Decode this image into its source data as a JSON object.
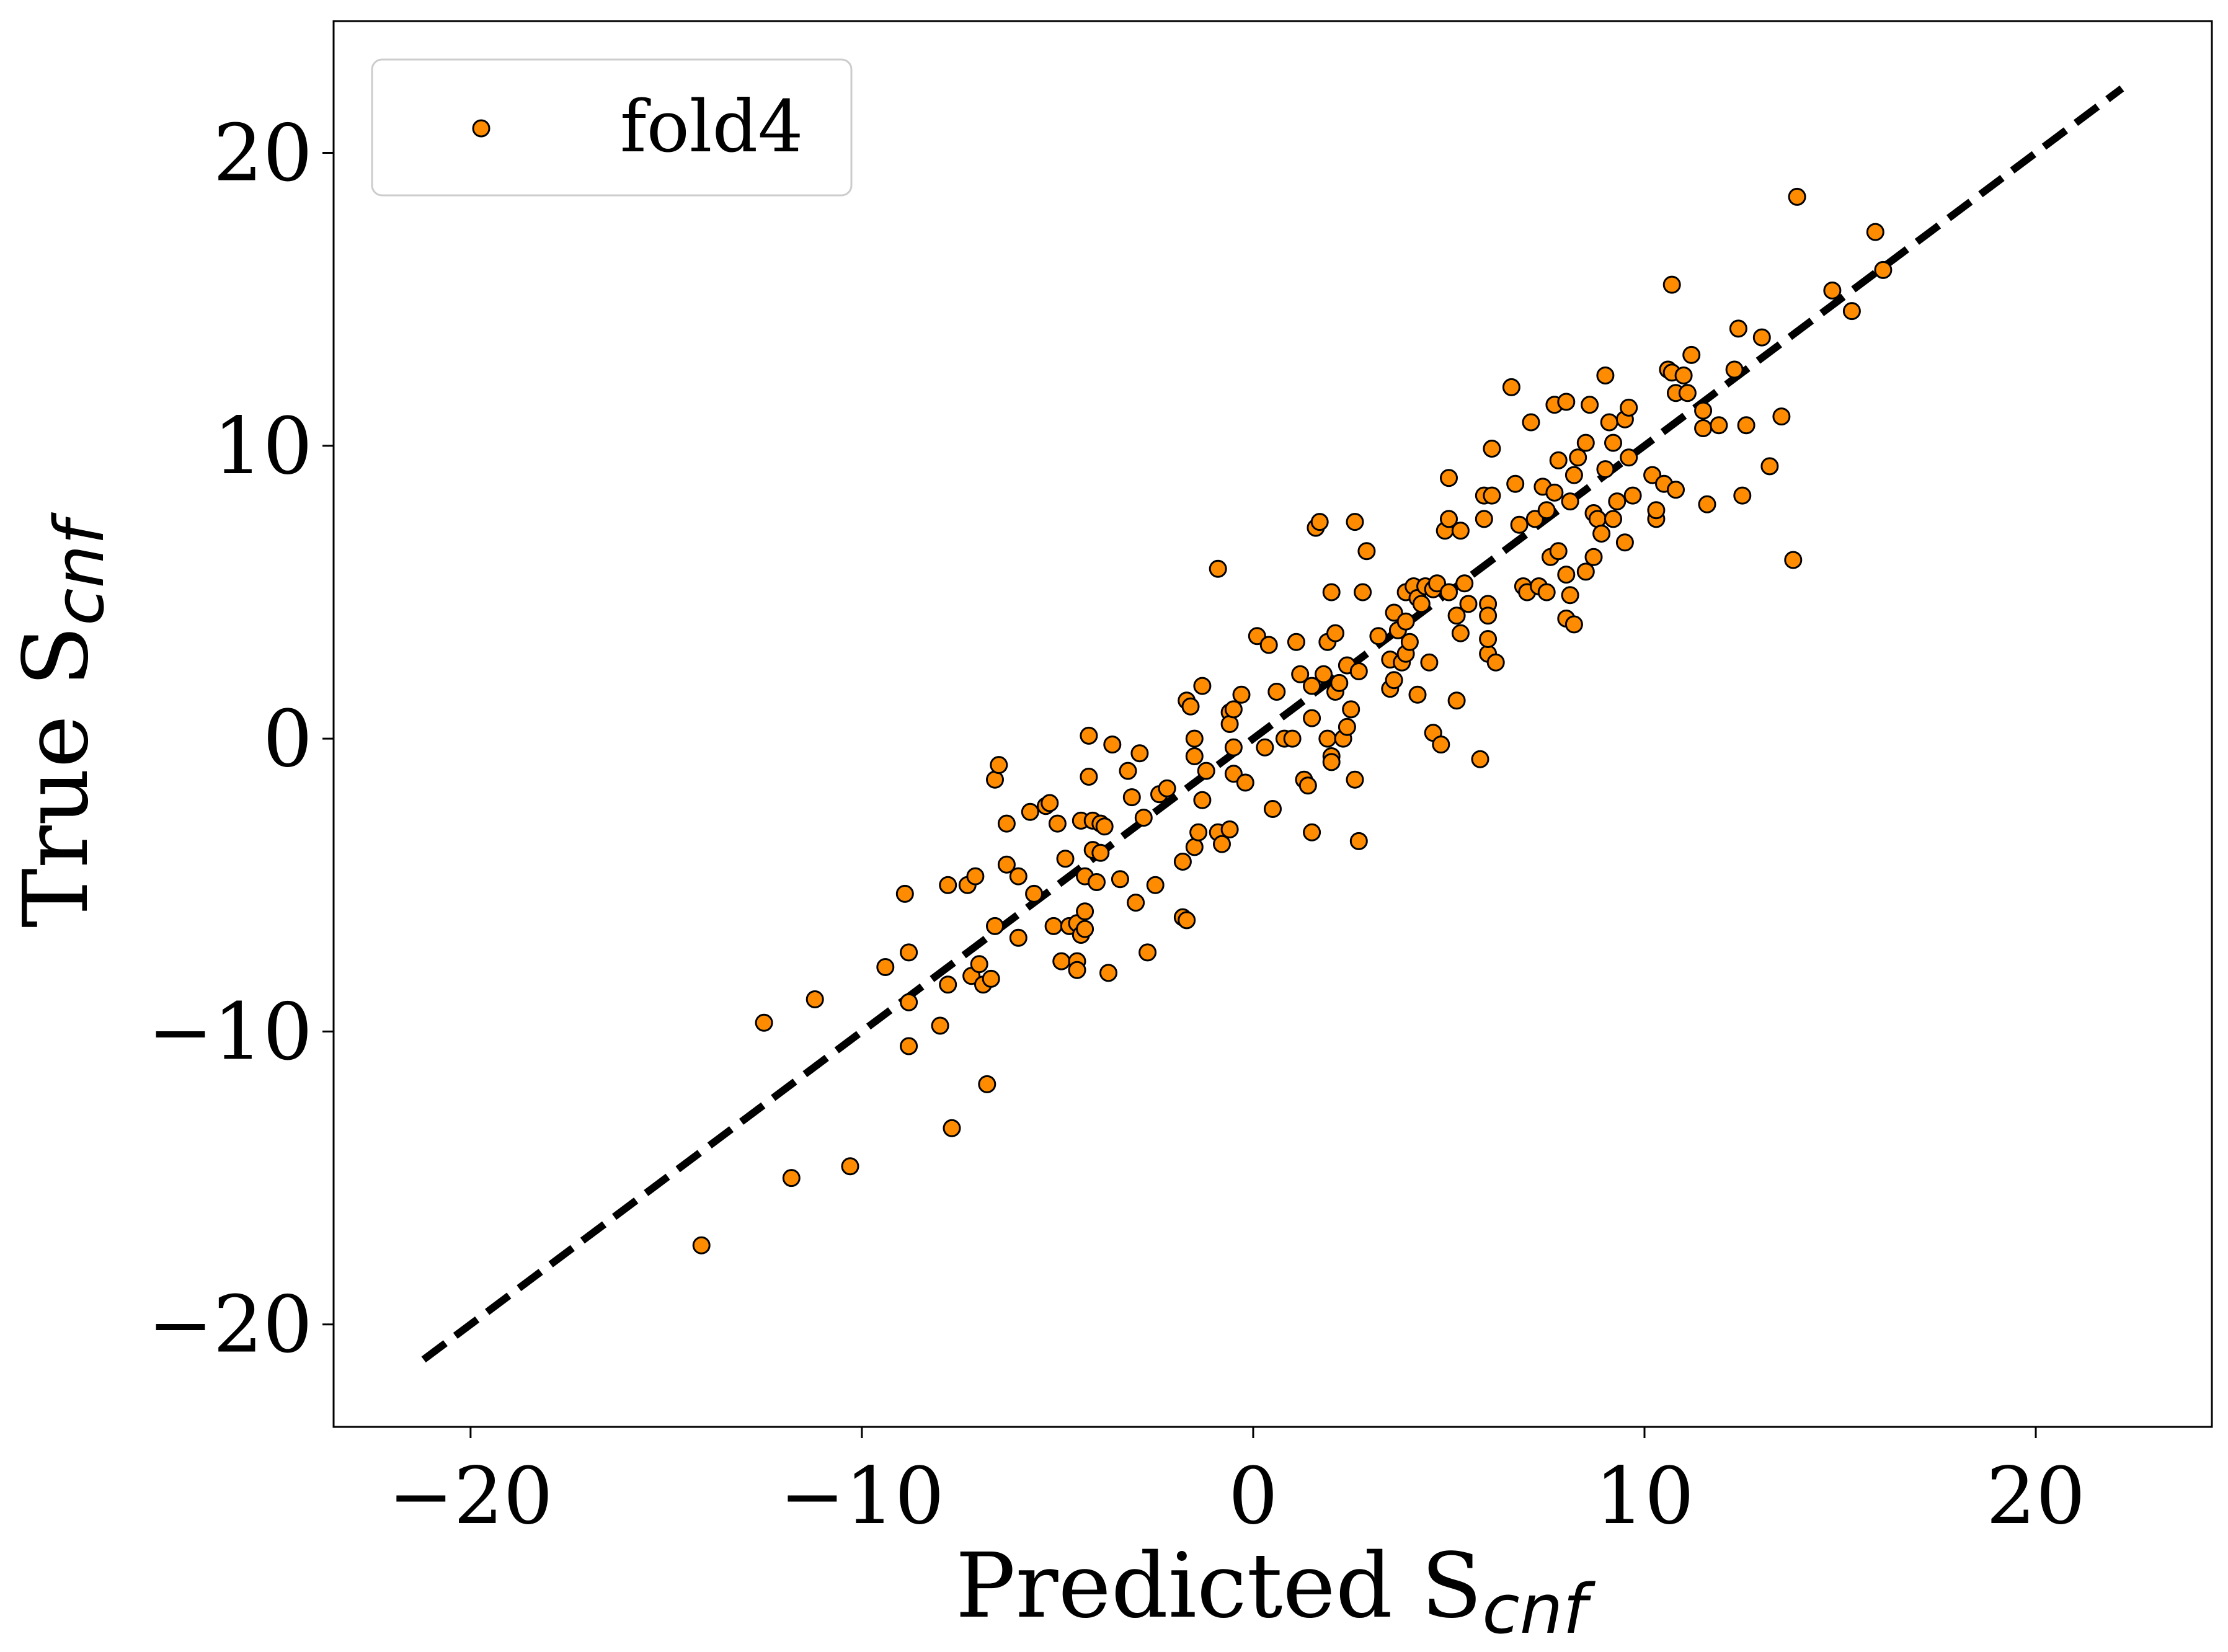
{
  "colors": {
    "marker_fill": "#ff8c00",
    "marker_edge": "#000000",
    "identity_line": "#000000",
    "background": "#ffffff"
  },
  "chart_data": {
    "type": "scatter",
    "xlabel": {
      "main": "Predicted S",
      "sub": "cnf"
    },
    "ylabel": {
      "main": "True S",
      "sub": "cnf"
    },
    "xlim": [
      -23.5,
      24.5
    ],
    "ylim": [
      -23.5,
      24.5
    ],
    "xticks": [
      -20,
      -10,
      0,
      10,
      20
    ],
    "yticks": [
      -20,
      -10,
      0,
      10,
      20
    ],
    "xtick_labels": [
      "−20",
      "−10",
      "0",
      "10",
      "20"
    ],
    "ytick_labels": [
      "−20",
      "−10",
      "0",
      "10",
      "20"
    ],
    "grid": false,
    "legend": {
      "position": "top-left",
      "entries": [
        "fold4"
      ]
    },
    "reference_line": {
      "style": "dashed",
      "from": [
        -21.2,
        -21.2
      ],
      "to": [
        22.2,
        22.2
      ]
    },
    "series": [
      {
        "name": "fold4",
        "points": [
          [
            -14.1,
            -17.3
          ],
          [
            -12.5,
            -9.7
          ],
          [
            -11.8,
            -15.0
          ],
          [
            -11.2,
            -8.9
          ],
          [
            -10.3,
            -14.6
          ],
          [
            -9.4,
            -7.8
          ],
          [
            -8.9,
            -5.3
          ],
          [
            -8.8,
            -7.3
          ],
          [
            -8.8,
            -9.0
          ],
          [
            -8.8,
            -10.5
          ],
          [
            -8.0,
            -9.8
          ],
          [
            -7.8,
            -5.0
          ],
          [
            -7.8,
            -8.4
          ],
          [
            -7.7,
            -13.3
          ],
          [
            -7.3,
            -5.0
          ],
          [
            -7.2,
            -8.1
          ],
          [
            -7.1,
            -4.7
          ],
          [
            -7.0,
            -7.7
          ],
          [
            -6.9,
            -8.4
          ],
          [
            -6.8,
            -11.8
          ],
          [
            -6.7,
            -8.2
          ],
          [
            -6.6,
            -1.4
          ],
          [
            -6.6,
            -6.4
          ],
          [
            -6.5,
            -0.9
          ],
          [
            -6.3,
            -2.9
          ],
          [
            -6.3,
            -4.3
          ],
          [
            -6.0,
            -4.7
          ],
          [
            -6.0,
            -6.8
          ],
          [
            -5.7,
            -2.5
          ],
          [
            -5.6,
            -5.3
          ],
          [
            -5.3,
            -2.3
          ],
          [
            -5.2,
            -2.2
          ],
          [
            -5.1,
            -6.4
          ],
          [
            -5.0,
            -2.9
          ],
          [
            -4.9,
            -7.6
          ],
          [
            -4.8,
            -4.1
          ],
          [
            -4.7,
            -6.4
          ],
          [
            -4.5,
            -6.3
          ],
          [
            -4.5,
            -7.6
          ],
          [
            -4.5,
            -7.9
          ],
          [
            -4.4,
            -6.7
          ],
          [
            -4.4,
            -2.8
          ],
          [
            -4.3,
            -4.7
          ],
          [
            -4.3,
            -5.9
          ],
          [
            -4.3,
            -6.5
          ],
          [
            -4.2,
            0.1
          ],
          [
            -4.2,
            -1.3
          ],
          [
            -4.1,
            -2.8
          ],
          [
            -4.1,
            -3.8
          ],
          [
            -4.0,
            -4.9
          ],
          [
            -3.9,
            -2.9
          ],
          [
            -3.9,
            -3.9
          ],
          [
            -3.8,
            -3.0
          ],
          [
            -3.7,
            -8.0
          ],
          [
            -3.6,
            -0.2
          ],
          [
            -3.4,
            -4.8
          ],
          [
            -3.2,
            -1.1
          ],
          [
            -3.1,
            -2.0
          ],
          [
            -3.0,
            -5.6
          ],
          [
            -2.9,
            -0.5
          ],
          [
            -2.8,
            -2.7
          ],
          [
            -2.7,
            -7.3
          ],
          [
            -2.5,
            -5.0
          ],
          [
            -2.4,
            -1.9
          ],
          [
            -2.2,
            -1.7
          ],
          [
            -1.8,
            -4.2
          ],
          [
            -1.8,
            -6.1
          ],
          [
            -1.7,
            -6.2
          ],
          [
            -1.7,
            1.3
          ],
          [
            -1.6,
            1.1
          ],
          [
            -1.5,
            0.0
          ],
          [
            -1.5,
            -0.6
          ],
          [
            -1.5,
            -3.7
          ],
          [
            -1.4,
            -3.2
          ],
          [
            -1.3,
            1.8
          ],
          [
            -1.3,
            -2.1
          ],
          [
            -1.2,
            -1.1
          ],
          [
            -0.9,
            -3.2
          ],
          [
            -0.9,
            5.8
          ],
          [
            -0.8,
            -3.6
          ],
          [
            -0.6,
            -3.1
          ],
          [
            -0.6,
            0.9
          ],
          [
            -0.6,
            0.5
          ],
          [
            -0.5,
            -0.3
          ],
          [
            -0.5,
            -1.2
          ],
          [
            -0.5,
            1.0
          ],
          [
            -0.3,
            1.5
          ],
          [
            -0.2,
            -1.5
          ],
          [
            0.1,
            3.5
          ],
          [
            0.3,
            -0.3
          ],
          [
            0.4,
            3.2
          ],
          [
            0.5,
            -2.4
          ],
          [
            0.6,
            1.6
          ],
          [
            0.8,
            0.0
          ],
          [
            1.0,
            0.0
          ],
          [
            1.1,
            3.3
          ],
          [
            1.2,
            2.2
          ],
          [
            1.3,
            -1.4
          ],
          [
            1.4,
            -1.6
          ],
          [
            1.5,
            1.8
          ],
          [
            1.5,
            0.7
          ],
          [
            1.5,
            -3.2
          ],
          [
            1.6,
            7.2
          ],
          [
            1.7,
            7.4
          ],
          [
            1.8,
            2.2
          ],
          [
            1.9,
            3.3
          ],
          [
            1.9,
            0.0
          ],
          [
            2.0,
            -0.6
          ],
          [
            2.0,
            -0.8
          ],
          [
            2.0,
            5.0
          ],
          [
            2.1,
            1.6
          ],
          [
            2.1,
            3.6
          ],
          [
            2.2,
            1.9
          ],
          [
            2.3,
            0.0
          ],
          [
            2.4,
            2.5
          ],
          [
            2.4,
            0.4
          ],
          [
            2.5,
            1.0
          ],
          [
            2.6,
            -1.4
          ],
          [
            2.6,
            7.4
          ],
          [
            2.7,
            -3.5
          ],
          [
            2.7,
            2.3
          ],
          [
            2.8,
            5.0
          ],
          [
            2.9,
            6.4
          ],
          [
            3.2,
            3.5
          ],
          [
            3.5,
            2.7
          ],
          [
            3.5,
            1.7
          ],
          [
            3.6,
            4.3
          ],
          [
            3.6,
            2.0
          ],
          [
            3.7,
            3.7
          ],
          [
            3.8,
            2.6
          ],
          [
            3.9,
            2.9
          ],
          [
            3.9,
            4.0
          ],
          [
            3.9,
            5.0
          ],
          [
            4.0,
            3.3
          ],
          [
            4.1,
            5.2
          ],
          [
            4.2,
            4.8
          ],
          [
            4.2,
            1.5
          ],
          [
            4.3,
            4.6
          ],
          [
            4.4,
            5.2
          ],
          [
            4.5,
            2.6
          ],
          [
            4.6,
            5.1
          ],
          [
            4.6,
            0.2
          ],
          [
            4.7,
            5.3
          ],
          [
            4.8,
            -0.2
          ],
          [
            4.9,
            7.1
          ],
          [
            5.0,
            8.9
          ],
          [
            5.0,
            7.5
          ],
          [
            5.0,
            5.0
          ],
          [
            5.2,
            4.2
          ],
          [
            5.2,
            1.3
          ],
          [
            5.3,
            3.6
          ],
          [
            5.3,
            7.1
          ],
          [
            5.4,
            5.3
          ],
          [
            5.5,
            4.6
          ],
          [
            5.8,
            -0.7
          ],
          [
            5.9,
            8.3
          ],
          [
            5.9,
            7.5
          ],
          [
            6.0,
            2.9
          ],
          [
            6.0,
            3.4
          ],
          [
            6.0,
            4.6
          ],
          [
            6.0,
            4.2
          ],
          [
            6.1,
            8.3
          ],
          [
            6.1,
            9.9
          ],
          [
            6.2,
            2.6
          ],
          [
            6.6,
            12.0
          ],
          [
            6.7,
            8.7
          ],
          [
            6.8,
            7.3
          ],
          [
            6.9,
            5.2
          ],
          [
            7.0,
            5.0
          ],
          [
            7.1,
            10.8
          ],
          [
            7.2,
            7.5
          ],
          [
            7.3,
            5.2
          ],
          [
            7.4,
            8.6
          ],
          [
            7.5,
            5.0
          ],
          [
            7.5,
            7.8
          ],
          [
            7.6,
            6.2
          ],
          [
            7.7,
            8.4
          ],
          [
            7.7,
            11.4
          ],
          [
            7.8,
            6.4
          ],
          [
            7.8,
            9.5
          ],
          [
            8.0,
            11.5
          ],
          [
            8.0,
            4.1
          ],
          [
            8.0,
            5.6
          ],
          [
            8.1,
            8.1
          ],
          [
            8.1,
            4.9
          ],
          [
            8.2,
            9.0
          ],
          [
            8.2,
            3.9
          ],
          [
            8.3,
            9.6
          ],
          [
            8.5,
            10.1
          ],
          [
            8.5,
            5.7
          ],
          [
            8.6,
            11.4
          ],
          [
            8.7,
            6.2
          ],
          [
            8.7,
            7.7
          ],
          [
            8.8,
            7.5
          ],
          [
            8.9,
            7.0
          ],
          [
            9.0,
            12.4
          ],
          [
            9.0,
            9.2
          ],
          [
            9.1,
            10.8
          ],
          [
            9.2,
            10.1
          ],
          [
            9.2,
            7.5
          ],
          [
            9.3,
            8.1
          ],
          [
            9.5,
            10.9
          ],
          [
            9.5,
            6.7
          ],
          [
            9.6,
            11.3
          ],
          [
            9.6,
            9.6
          ],
          [
            9.7,
            8.3
          ],
          [
            10.2,
            9.0
          ],
          [
            10.3,
            7.5
          ],
          [
            10.3,
            7.8
          ],
          [
            10.5,
            8.7
          ],
          [
            10.6,
            12.6
          ],
          [
            10.7,
            15.5
          ],
          [
            10.7,
            12.5
          ],
          [
            10.8,
            11.8
          ],
          [
            10.8,
            8.5
          ],
          [
            11.0,
            12.4
          ],
          [
            11.1,
            11.8
          ],
          [
            11.2,
            13.1
          ],
          [
            11.5,
            11.2
          ],
          [
            11.5,
            10.6
          ],
          [
            11.6,
            8.0
          ],
          [
            11.9,
            10.7
          ],
          [
            12.3,
            12.6
          ],
          [
            12.4,
            14.0
          ],
          [
            12.5,
            8.3
          ],
          [
            12.6,
            10.7
          ],
          [
            13.0,
            13.7
          ],
          [
            13.2,
            9.3
          ],
          [
            13.5,
            11.0
          ],
          [
            13.8,
            6.1
          ],
          [
            13.9,
            18.5
          ],
          [
            14.8,
            15.3
          ],
          [
            15.3,
            14.6
          ],
          [
            15.9,
            17.3
          ],
          [
            16.1,
            16.0
          ]
        ]
      }
    ]
  }
}
